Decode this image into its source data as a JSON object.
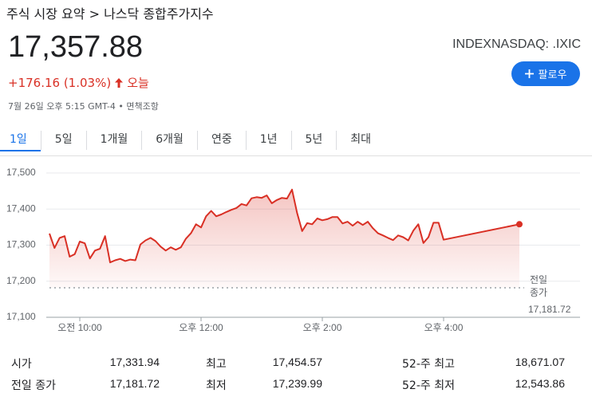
{
  "breadcrumb": "주식 시장 요약 > 나스닥 종합주가지수",
  "price": "17,357.88",
  "change": "+176.16 (1.03%)",
  "period": "오늘",
  "timestamp": "7월 26일 오후 5:15 GMT-4",
  "disclaimer": "면책조항",
  "ticker": "INDEXNASDAQ: .IXIC",
  "follow_button": "팔로우",
  "tabs": [
    "1일",
    "5일",
    "1개월",
    "6개월",
    "연중",
    "1년",
    "5년",
    "최대"
  ],
  "selected_tab": 0,
  "chart_data": {
    "type": "line",
    "color": "#d93025",
    "x": [
      570,
      575,
      580,
      585,
      590,
      595,
      600,
      605,
      610,
      615,
      620,
      625,
      630,
      635,
      640,
      645,
      650,
      655,
      660,
      665,
      670,
      675,
      680,
      685,
      690,
      695,
      700,
      705,
      710,
      715,
      720,
      725,
      730,
      735,
      740,
      745,
      750,
      755,
      760,
      765,
      770,
      775,
      780,
      785,
      790,
      795,
      800,
      805,
      810,
      815,
      820,
      825,
      830,
      835,
      840,
      845,
      850,
      855,
      860,
      865,
      870,
      875,
      880,
      885,
      890,
      895,
      900,
      905,
      910,
      915,
      920,
      925,
      930,
      935,
      940,
      945,
      950,
      955,
      960,
      1035
    ],
    "values": [
      17332,
      17292,
      17320,
      17325,
      17268,
      17275,
      17310,
      17305,
      17263,
      17285,
      17290,
      17325,
      17252,
      17258,
      17262,
      17256,
      17260,
      17258,
      17302,
      17313,
      17320,
      17311,
      17296,
      17285,
      17294,
      17287,
      17294,
      17318,
      17333,
      17358,
      17349,
      17380,
      17395,
      17380,
      17385,
      17392,
      17398,
      17403,
      17414,
      17410,
      17430,
      17433,
      17431,
      17438,
      17416,
      17425,
      17431,
      17429,
      17454,
      17390,
      17339,
      17361,
      17358,
      17374,
      17369,
      17372,
      17378,
      17378,
      17360,
      17365,
      17354,
      17365,
      17356,
      17365,
      17347,
      17333,
      17327,
      17320,
      17314,
      17327,
      17322,
      17313,
      17340,
      17358,
      17306,
      17322,
      17362,
      17362,
      17315,
      17357.88
    ],
    "xlim": [
      570,
      1095
    ],
    "ylim": [
      17100,
      17500
    ],
    "xticks": [
      {
        "value": 600,
        "label": "오전 10:00"
      },
      {
        "value": 720,
        "label": "오후 12:00"
      },
      {
        "value": 840,
        "label": "오후 2:00"
      },
      {
        "value": 960,
        "label": "오후 4:00"
      }
    ],
    "yticks": [
      {
        "value": 17100,
        "label": "17,100"
      },
      {
        "value": 17200,
        "label": "17,200"
      },
      {
        "value": 17300,
        "label": "17,300"
      },
      {
        "value": 17400,
        "label": "17,400"
      },
      {
        "value": 17500,
        "label": "17,500"
      }
    ],
    "grid": true,
    "reference_line": {
      "name": "전일 종가",
      "value": 17181.72,
      "label": "17,181.72"
    }
  },
  "stats": [
    [
      [
        "시가",
        "17,331.94"
      ],
      [
        "최고",
        "17,454.57"
      ],
      [
        "52-주 최고",
        "18,671.07"
      ]
    ],
    [
      [
        "전일 종가",
        "17,181.72"
      ],
      [
        "최저",
        "17,239.99"
      ],
      [
        "52-주 최저",
        "12,543.86"
      ]
    ]
  ]
}
